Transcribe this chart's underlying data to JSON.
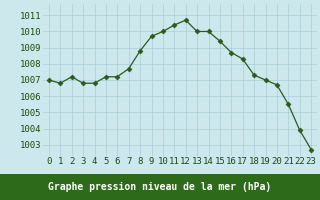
{
  "hours": [
    0,
    1,
    2,
    3,
    4,
    5,
    6,
    7,
    8,
    9,
    10,
    11,
    12,
    13,
    14,
    15,
    16,
    17,
    18,
    19,
    20,
    21,
    22,
    23
  ],
  "pressure": [
    1007.0,
    1006.8,
    1007.2,
    1006.8,
    1006.8,
    1007.2,
    1007.2,
    1007.7,
    1008.8,
    1009.7,
    1010.0,
    1010.4,
    1010.7,
    1010.0,
    1010.0,
    1009.4,
    1008.7,
    1008.3,
    1007.3,
    1007.0,
    1006.7,
    1005.5,
    1003.9,
    1002.7
  ],
  "line_color": "#2d5a1b",
  "marker": "D",
  "marker_size": 2.5,
  "bg_color": "#cce8ec",
  "grid_color": "#aacdd4",
  "ylabel_ticks": [
    1003,
    1004,
    1005,
    1006,
    1007,
    1008,
    1009,
    1010,
    1011
  ],
  "ylim": [
    1002.3,
    1011.7
  ],
  "xlim": [
    -0.5,
    23.5
  ],
  "xlabel": "Graphe pression niveau de la mer (hPa)",
  "xlabel_color": "#1a3d0a",
  "tick_label_color": "#1a4a10",
  "xlabel_fontsize": 7.0,
  "tick_fontsize": 6.5,
  "bottom_bar_color": "#2d6b1a",
  "bottom_bar_height": 0.13
}
